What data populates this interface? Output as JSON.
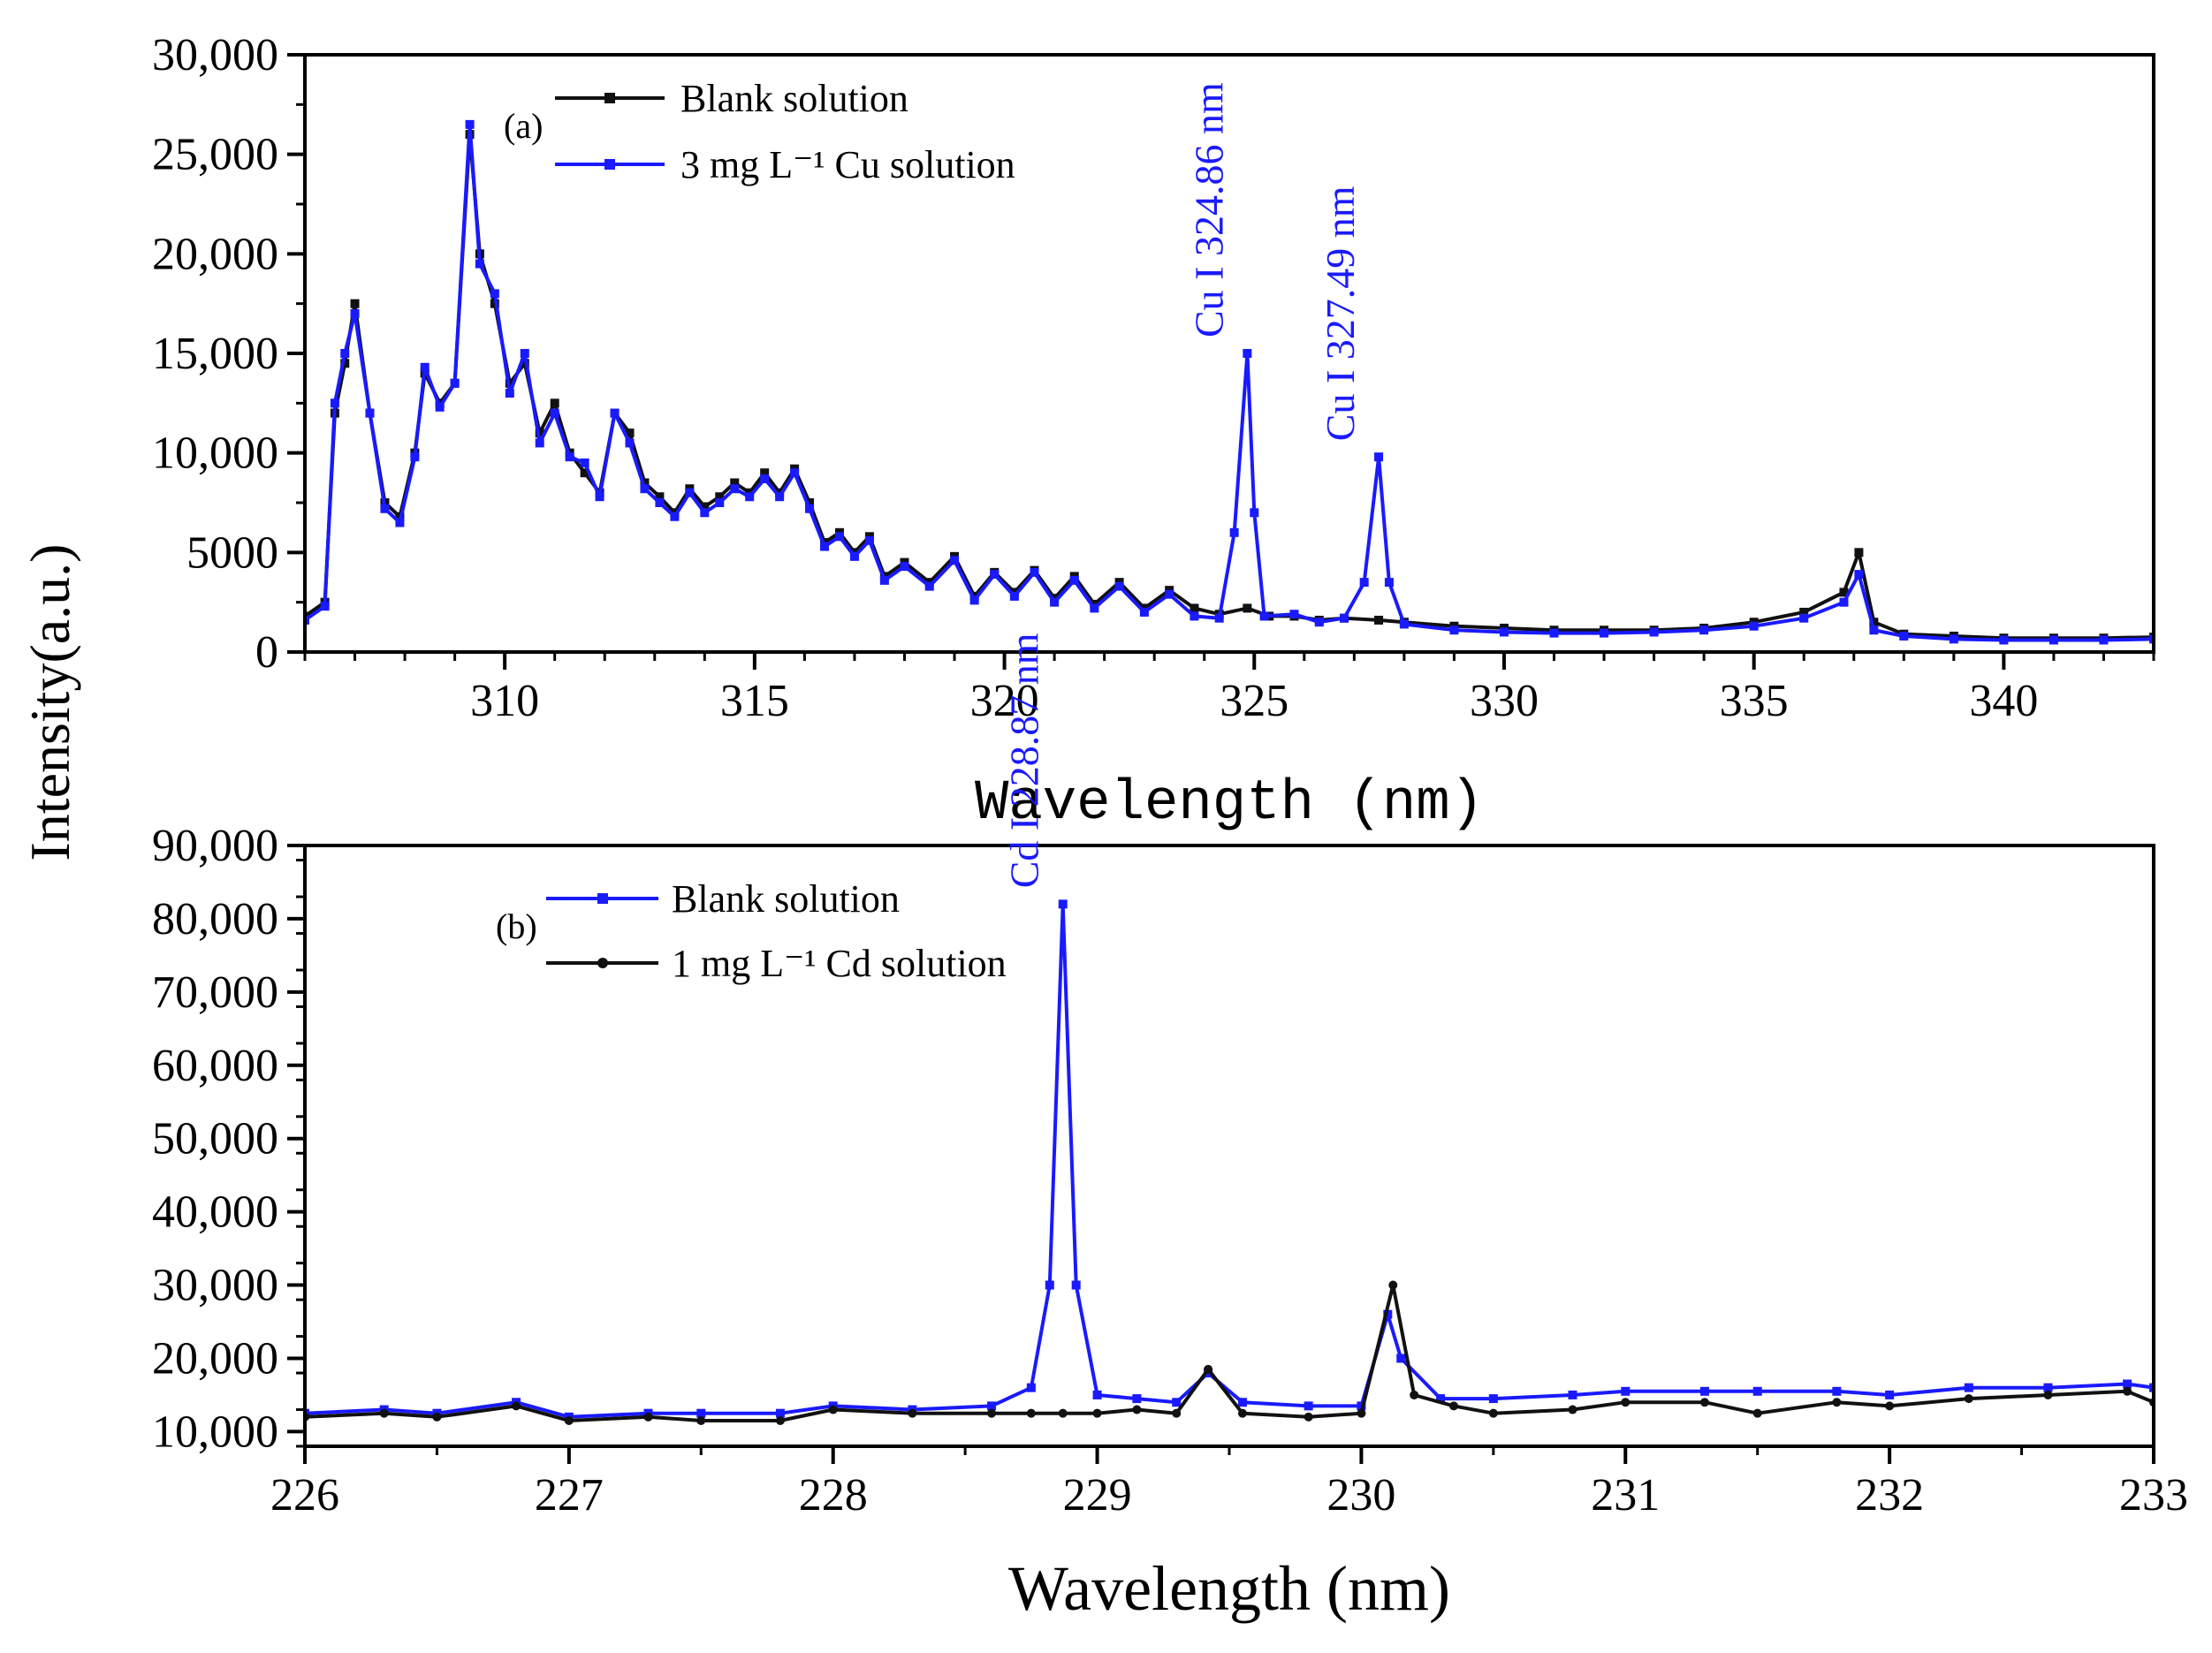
{
  "figure": {
    "shared_ylabel": "Intensity(a.u.)",
    "colors": {
      "black_series": "#111111",
      "blue_series": "#1a1aff",
      "axis": "#000000"
    }
  },
  "chart_data": [
    {
      "id": "a",
      "type": "line",
      "panel_label": "(a)",
      "title": "",
      "xlabel": "Wavelength (nm)",
      "ylabel": "Intensity(a.u.)",
      "xlim": [
        306,
        343
      ],
      "ylim": [
        0,
        30000
      ],
      "x_ticks": [
        310,
        315,
        320,
        325,
        330,
        335,
        340
      ],
      "x_tick_labels": [
        "310",
        "315",
        "320",
        "325",
        "330",
        "335",
        "340"
      ],
      "y_ticks": [
        0,
        5000,
        10000,
        15000,
        20000,
        25000,
        30000
      ],
      "y_tick_labels": [
        "0",
        "5000",
        "10,000",
        "15,000",
        "20,000",
        "25,000",
        "30,000"
      ],
      "legend_position": "top-left",
      "series": [
        {
          "name": "Blank solution",
          "legend_text": "Blank solution",
          "color": "#111111",
          "marker": "square",
          "points": [
            [
              306,
              1800
            ],
            [
              306.4,
              2500
            ],
            [
              306.6,
              12000
            ],
            [
              306.8,
              14500
            ],
            [
              307.0,
              17500
            ],
            [
              307.3,
              12000
            ],
            [
              307.6,
              7500
            ],
            [
              307.9,
              6800
            ],
            [
              308.2,
              10000
            ],
            [
              308.4,
              14000
            ],
            [
              308.7,
              12500
            ],
            [
              309.0,
              13500
            ],
            [
              309.3,
              26000
            ],
            [
              309.5,
              20000
            ],
            [
              309.8,
              17500
            ],
            [
              310.1,
              13500
            ],
            [
              310.4,
              14500
            ],
            [
              310.7,
              11000
            ],
            [
              311.0,
              12500
            ],
            [
              311.3,
              10000
            ],
            [
              311.6,
              9000
            ],
            [
              311.9,
              8000
            ],
            [
              312.2,
              12000
            ],
            [
              312.5,
              11000
            ],
            [
              312.8,
              8500
            ],
            [
              313.1,
              7800
            ],
            [
              313.4,
              7000
            ],
            [
              313.7,
              8200
            ],
            [
              314.0,
              7300
            ],
            [
              314.3,
              7800
            ],
            [
              314.6,
              8500
            ],
            [
              314.9,
              8000
            ],
            [
              315.2,
              9000
            ],
            [
              315.5,
              8000
            ],
            [
              315.8,
              9200
            ],
            [
              316.1,
              7500
            ],
            [
              316.4,
              5500
            ],
            [
              316.7,
              6000
            ],
            [
              317.0,
              5000
            ],
            [
              317.3,
              5800
            ],
            [
              317.6,
              3800
            ],
            [
              318.0,
              4500
            ],
            [
              318.5,
              3500
            ],
            [
              319.0,
              4800
            ],
            [
              319.4,
              2800
            ],
            [
              319.8,
              4000
            ],
            [
              320.2,
              3000
            ],
            [
              320.6,
              4100
            ],
            [
              321.0,
              2700
            ],
            [
              321.4,
              3800
            ],
            [
              321.8,
              2400
            ],
            [
              322.3,
              3500
            ],
            [
              322.8,
              2200
            ],
            [
              323.3,
              3100
            ],
            [
              323.8,
              2200
            ],
            [
              324.3,
              1900
            ],
            [
              324.86,
              2200
            ],
            [
              325.3,
              1800
            ],
            [
              325.8,
              1800
            ],
            [
              326.3,
              1600
            ],
            [
              326.8,
              1700
            ],
            [
              327.49,
              1600
            ],
            [
              328,
              1500
            ],
            [
              329,
              1300
            ],
            [
              330,
              1200
            ],
            [
              331,
              1100
            ],
            [
              332,
              1100
            ],
            [
              333,
              1100
            ],
            [
              334,
              1200
            ],
            [
              335,
              1500
            ],
            [
              336,
              2000
            ],
            [
              336.8,
              3000
            ],
            [
              337.1,
              5000
            ],
            [
              337.4,
              1500
            ],
            [
              338,
              900
            ],
            [
              339,
              800
            ],
            [
              340,
              700
            ],
            [
              341,
              700
            ],
            [
              342,
              700
            ],
            [
              343,
              750
            ]
          ]
        },
        {
          "name": "3 mg L⁻¹ Cu solution",
          "legend_text": "3 mg L⁻¹ Cu solution",
          "color": "#1a1aff",
          "marker": "square",
          "points": [
            [
              306,
              1600
            ],
            [
              306.4,
              2300
            ],
            [
              306.6,
              12500
            ],
            [
              306.8,
              15000
            ],
            [
              307.0,
              17000
            ],
            [
              307.3,
              12000
            ],
            [
              307.6,
              7200
            ],
            [
              307.9,
              6500
            ],
            [
              308.2,
              9800
            ],
            [
              308.4,
              14300
            ],
            [
              308.7,
              12300
            ],
            [
              309.0,
              13500
            ],
            [
              309.3,
              26500
            ],
            [
              309.5,
              19500
            ],
            [
              309.8,
              18000
            ],
            [
              310.1,
              13000
            ],
            [
              310.4,
              15000
            ],
            [
              310.7,
              10500
            ],
            [
              311.0,
              12000
            ],
            [
              311.3,
              9800
            ],
            [
              311.6,
              9500
            ],
            [
              311.9,
              7800
            ],
            [
              312.2,
              12000
            ],
            [
              312.5,
              10500
            ],
            [
              312.8,
              8200
            ],
            [
              313.1,
              7500
            ],
            [
              313.4,
              6800
            ],
            [
              313.7,
              8000
            ],
            [
              314.0,
              7000
            ],
            [
              314.3,
              7500
            ],
            [
              314.6,
              8200
            ],
            [
              314.9,
              7800
            ],
            [
              315.2,
              8700
            ],
            [
              315.5,
              7800
            ],
            [
              315.8,
              9000
            ],
            [
              316.1,
              7200
            ],
            [
              316.4,
              5300
            ],
            [
              316.7,
              5800
            ],
            [
              317.0,
              4800
            ],
            [
              317.3,
              5600
            ],
            [
              317.6,
              3600
            ],
            [
              318.0,
              4300
            ],
            [
              318.5,
              3300
            ],
            [
              319.0,
              4600
            ],
            [
              319.4,
              2600
            ],
            [
              319.8,
              3900
            ],
            [
              320.2,
              2800
            ],
            [
              320.6,
              4000
            ],
            [
              321.0,
              2500
            ],
            [
              321.4,
              3600
            ],
            [
              321.8,
              2200
            ],
            [
              322.3,
              3300
            ],
            [
              322.8,
              2000
            ],
            [
              323.3,
              2900
            ],
            [
              323.8,
              1800
            ],
            [
              324.3,
              1700
            ],
            [
              324.6,
              6000
            ],
            [
              324.86,
              15000
            ],
            [
              325.0,
              7000
            ],
            [
              325.2,
              1800
            ],
            [
              325.8,
              1900
            ],
            [
              326.3,
              1500
            ],
            [
              326.8,
              1700
            ],
            [
              327.2,
              3500
            ],
            [
              327.49,
              9800
            ],
            [
              327.7,
              3500
            ],
            [
              328,
              1400
            ],
            [
              329,
              1100
            ],
            [
              330,
              1000
            ],
            [
              331,
              950
            ],
            [
              332,
              950
            ],
            [
              333,
              1000
            ],
            [
              334,
              1100
            ],
            [
              335,
              1300
            ],
            [
              336,
              1700
            ],
            [
              336.8,
              2500
            ],
            [
              337.1,
              3900
            ],
            [
              337.4,
              1100
            ],
            [
              338,
              800
            ],
            [
              339,
              650
            ],
            [
              340,
              600
            ],
            [
              341,
              600
            ],
            [
              342,
              600
            ],
            [
              343,
              650
            ]
          ]
        }
      ],
      "annotations": [
        {
          "text": "Cu I 324.86 nm",
          "x": 324.86,
          "y": 15000,
          "rotation": -90,
          "color": "#1a1aff"
        },
        {
          "text": "Cu I 327.49 nm",
          "x": 327.49,
          "y": 9800,
          "rotation": -90,
          "color": "#1a1aff"
        }
      ]
    },
    {
      "id": "b",
      "type": "line",
      "panel_label": "(b)",
      "title": "",
      "xlabel": "Wavelength (nm)",
      "ylabel": "Intensity(a.u.)",
      "xlim": [
        226,
        233
      ],
      "ylim": [
        8000,
        90000
      ],
      "x_ticks": [
        226,
        227,
        228,
        229,
        230,
        231,
        232,
        233
      ],
      "x_tick_labels": [
        "226",
        "227",
        "228",
        "229",
        "230",
        "231",
        "232",
        "233"
      ],
      "y_ticks": [
        10000,
        20000,
        30000,
        40000,
        50000,
        60000,
        70000,
        80000,
        90000
      ],
      "y_tick_labels": [
        "10,000",
        "20,000",
        "30,000",
        "40,000",
        "50,000",
        "60,000",
        "70,000",
        "80,000",
        "90,000"
      ],
      "legend_position": "top-left",
      "series": [
        {
          "name": "Blank solution",
          "legend_text": "Blank solution",
          "color": "#1a1aff",
          "marker": "square",
          "points": [
            [
              226.0,
              12500
            ],
            [
              226.3,
              13000
            ],
            [
              226.5,
              12500
            ],
            [
              226.8,
              14000
            ],
            [
              227.0,
              12000
            ],
            [
              227.3,
              12500
            ],
            [
              227.5,
              12500
            ],
            [
              227.8,
              12500
            ],
            [
              228.0,
              13500
            ],
            [
              228.3,
              13000
            ],
            [
              228.6,
              13500
            ],
            [
              228.75,
              16000
            ],
            [
              228.82,
              30000
            ],
            [
              228.87,
              82000
            ],
            [
              228.92,
              30000
            ],
            [
              229.0,
              15000
            ],
            [
              229.15,
              14500
            ],
            [
              229.3,
              14000
            ],
            [
              229.42,
              18000
            ],
            [
              229.55,
              14000
            ],
            [
              229.8,
              13500
            ],
            [
              230.0,
              13500
            ],
            [
              230.1,
              26000
            ],
            [
              230.15,
              20000
            ],
            [
              230.3,
              14500
            ],
            [
              230.5,
              14500
            ],
            [
              230.8,
              15000
            ],
            [
              231.0,
              15500
            ],
            [
              231.3,
              15500
            ],
            [
              231.5,
              15500
            ],
            [
              231.8,
              15500
            ],
            [
              232.0,
              15000
            ],
            [
              232.3,
              16000
            ],
            [
              232.6,
              16000
            ],
            [
              232.9,
              16500
            ],
            [
              233.0,
              16000
            ]
          ]
        },
        {
          "name": "1 mg L⁻¹ Cd solution",
          "legend_text": "1 mg L⁻¹ Cd solution",
          "color": "#111111",
          "marker": "circle",
          "points": [
            [
              226.0,
              12000
            ],
            [
              226.3,
              12500
            ],
            [
              226.5,
              12000
            ],
            [
              226.8,
              13500
            ],
            [
              227.0,
              11500
            ],
            [
              227.3,
              12000
            ],
            [
              227.5,
              11500
            ],
            [
              227.8,
              11500
            ],
            [
              228.0,
              13000
            ],
            [
              228.3,
              12500
            ],
            [
              228.6,
              12500
            ],
            [
              228.75,
              12500
            ],
            [
              228.87,
              12500
            ],
            [
              229.0,
              12500
            ],
            [
              229.15,
              13000
            ],
            [
              229.3,
              12500
            ],
            [
              229.42,
              18500
            ],
            [
              229.55,
              12500
            ],
            [
              229.8,
              12000
            ],
            [
              230.0,
              12500
            ],
            [
              230.12,
              30000
            ],
            [
              230.2,
              15000
            ],
            [
              230.35,
              13500
            ],
            [
              230.5,
              12500
            ],
            [
              230.8,
              13000
            ],
            [
              231.0,
              14000
            ],
            [
              231.3,
              14000
            ],
            [
              231.5,
              12500
            ],
            [
              231.8,
              14000
            ],
            [
              232.0,
              13500
            ],
            [
              232.3,
              14500
            ],
            [
              232.6,
              15000
            ],
            [
              232.9,
              15500
            ],
            [
              233.0,
              14000
            ]
          ]
        }
      ],
      "annotations": [
        {
          "text": "Cd I 228.87 nm",
          "x": 228.87,
          "y": 82000,
          "rotation": -90,
          "color": "#1a1aff"
        }
      ]
    }
  ]
}
